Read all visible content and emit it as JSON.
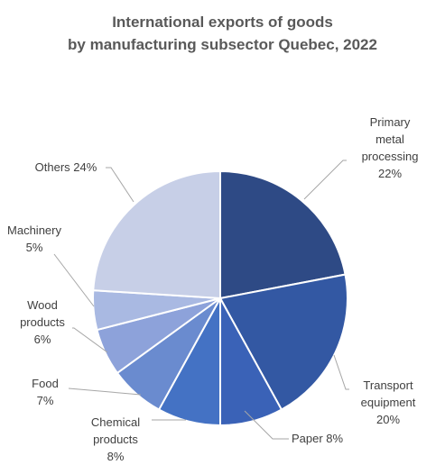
{
  "title_lines": [
    "International exports of goods",
    "by manufacturing subsector Quebec, 2022"
  ],
  "chart_data": {
    "type": "pie",
    "title": "International exports of goods by manufacturing subsector Quebec, 2022",
    "categories": [
      "Primary metal processing",
      "Transport equipment",
      "Paper",
      "Chemical products",
      "Food",
      "Wood products",
      "Machinery",
      "Others"
    ],
    "values": [
      22,
      20,
      8,
      8,
      7,
      6,
      5,
      24
    ],
    "unit": "%",
    "colors": [
      "#2e4a85",
      "#3358a3",
      "#3a62b7",
      "#4472c4",
      "#6a8bcf",
      "#8da2da",
      "#a9b9e2",
      "#c7cfe7"
    ],
    "labels": [
      [
        "Primary",
        "metal",
        "processing",
        "22%"
      ],
      [
        "Transport",
        "equipment",
        "20%"
      ],
      [
        "Paper 8%"
      ],
      [
        "Chemical",
        "products",
        "8%"
      ],
      [
        "Food",
        "7%"
      ],
      [
        "Wood",
        "products",
        "6%"
      ],
      [
        "Machinery",
        "5%"
      ],
      [
        "Others 24%"
      ]
    ],
    "leader_color": "#a6a6a6",
    "slice_border": "#ffffff"
  }
}
